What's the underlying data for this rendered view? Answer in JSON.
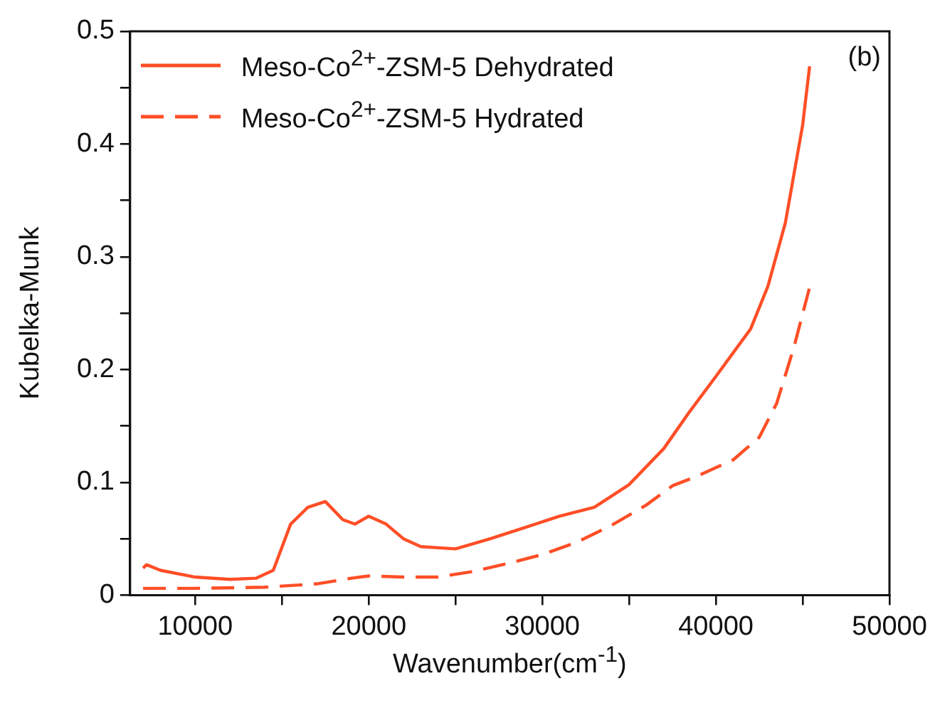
{
  "chart_data": {
    "type": "line",
    "xlabel": "Wavenumber(cm$^{-1}$)",
    "ylabel": "Kubelka-Munk",
    "annotations": [
      "(b)"
    ],
    "xlim": [
      6250,
      50000
    ],
    "ylim": [
      0,
      0.5
    ],
    "xticks": [
      10000,
      {
        "value": 15000,
        "label": null
      },
      20000,
      {
        "value": 25000,
        "label": null
      },
      30000,
      {
        "value": 35000,
        "label": null
      },
      40000,
      {
        "value": 45000,
        "label": null
      },
      50000
    ],
    "yticks": [
      0,
      {
        "value": 0.05,
        "label": null
      },
      0.1,
      {
        "value": 0.15,
        "label": null
      },
      0.2,
      {
        "value": 0.25,
        "label": null
      },
      0.3,
      {
        "value": 0.35,
        "label": null
      },
      0.4,
      {
        "value": 0.45,
        "label": null
      },
      0.5
    ],
    "grid": false,
    "legend": "top left",
    "marker": "none",
    "series": [
      {
        "name": "Meso-Co$^{2+}$-ZSM-5 Dehydrated",
        "color": "#ff4e26",
        "line_style": "solid",
        "x": [
          7000,
          7200,
          8000,
          10000,
          12000,
          13500,
          14500,
          15500,
          16500,
          17500,
          18500,
          19200,
          20000,
          21000,
          22000,
          23000,
          25000,
          27000,
          29000,
          31000,
          33000,
          35000,
          37000,
          38500,
          40000,
          42000,
          43000,
          44000,
          45000,
          45400
        ],
        "values": [
          0.024,
          0.027,
          0.022,
          0.016,
          0.014,
          0.015,
          0.022,
          0.063,
          0.078,
          0.083,
          0.067,
          0.063,
          0.07,
          0.063,
          0.05,
          0.043,
          0.041,
          0.05,
          0.06,
          0.07,
          0.078,
          0.098,
          0.13,
          0.163,
          0.194,
          0.236,
          0.274,
          0.33,
          0.417,
          0.469
        ]
      },
      {
        "name": "Meso-Co$^{2+}$-ZSM-5 Hydrated",
        "color": "#ff4e26",
        "line_style": "dashed",
        "x": [
          7000,
          10000,
          14000,
          17000,
          19000,
          20000,
          22000,
          24000,
          26000,
          28000,
          30000,
          32000,
          34000,
          36000,
          37500,
          39000,
          41000,
          42500,
          43500,
          44500,
          45400
        ],
        "values": [
          0.006,
          0.006,
          0.007,
          0.01,
          0.015,
          0.017,
          0.016,
          0.016,
          0.021,
          0.028,
          0.036,
          0.047,
          0.062,
          0.08,
          0.097,
          0.106,
          0.12,
          0.14,
          0.17,
          0.22,
          0.273
        ]
      }
    ]
  }
}
